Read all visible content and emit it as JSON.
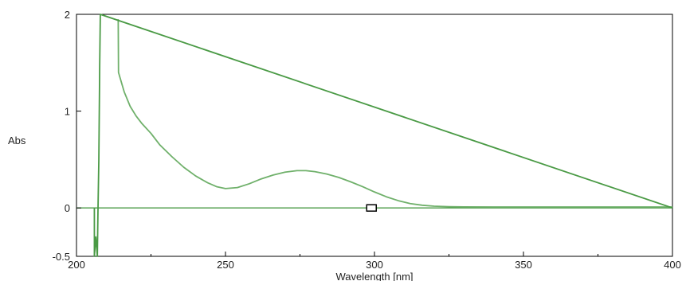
{
  "chart_data": {
    "type": "line",
    "title": "",
    "xlabel": "Wavelength [nm]",
    "ylabel": "Abs",
    "xlim": [
      200,
      400
    ],
    "ylim": [
      -0.5,
      2
    ],
    "x_ticks": [
      200,
      250,
      300,
      350,
      400
    ],
    "x_tick_labels": [
      "200",
      "250",
      "300",
      "350",
      "400"
    ],
    "y_ticks": [
      -0.5,
      0,
      1,
      2
    ],
    "y_tick_labels": [
      "-0.5",
      "0",
      "1",
      "2"
    ],
    "x_minor_ticks": [
      225,
      275,
      325,
      375
    ],
    "grid": false,
    "legend": "none",
    "colors": {
      "series": "#6fb06a",
      "baseline": "#4a9a45",
      "axes": "#000000",
      "marker": "#000000"
    },
    "series": [
      {
        "x": [
          214,
          214.1,
          216,
          218,
          220,
          222,
          225,
          228,
          232,
          236,
          240,
          244,
          247,
          250,
          254,
          258,
          262,
          266,
          270,
          274,
          277,
          280,
          284,
          288,
          292,
          296,
          300,
          304,
          308,
          312,
          316,
          320,
          325,
          330,
          340,
          350,
          360,
          380,
          400
        ],
        "y": [
          1.95,
          1.4,
          1.2,
          1.05,
          0.95,
          0.87,
          0.77,
          0.65,
          0.53,
          0.42,
          0.33,
          0.26,
          0.22,
          0.2,
          0.21,
          0.25,
          0.3,
          0.34,
          0.37,
          0.385,
          0.385,
          0.375,
          0.35,
          0.315,
          0.27,
          0.22,
          0.165,
          0.115,
          0.075,
          0.045,
          0.028,
          0.018,
          0.013,
          0.011,
          0.01,
          0.01,
          0.01,
          0.01,
          0.01
        ]
      },
      {
        "x": [
          206,
          206,
          206.5,
          207,
          207.2,
          207.5,
          207.8,
          208,
          400
        ],
        "y": [
          0.0,
          -0.5,
          -0.3,
          -0.5,
          -0.05,
          0.5,
          1.5,
          2.0,
          0.0
        ]
      }
    ],
    "markers": [
      {
        "x": 299,
        "y": 0.0
      }
    ]
  }
}
